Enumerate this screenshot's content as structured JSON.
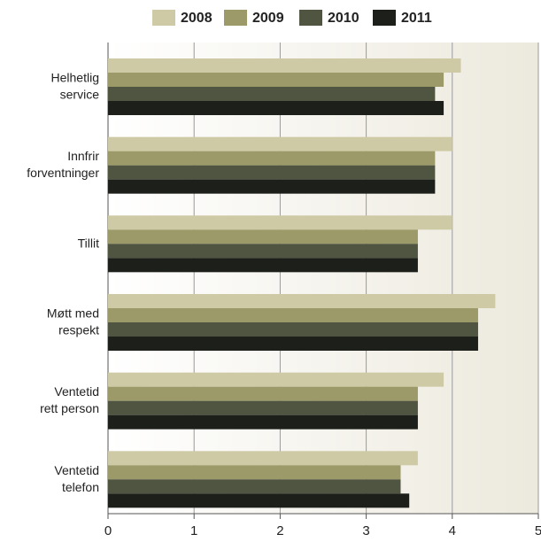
{
  "chart_data": {
    "type": "bar",
    "orientation": "horizontal",
    "categories": [
      "Helhetlig\nservice",
      "Innfrir\nforventninger",
      "Tillit",
      "Møtt med\nrespekt",
      "Ventetid\nrett person",
      "Ventetid\ntelefon"
    ],
    "series": [
      {
        "name": "2008",
        "color": "#cfcaa6",
        "values": [
          4.1,
          4.0,
          4.0,
          4.5,
          3.9,
          3.6
        ]
      },
      {
        "name": "2009",
        "color": "#9c9a68",
        "values": [
          3.9,
          3.8,
          3.6,
          4.3,
          3.6,
          3.4
        ]
      },
      {
        "name": "2010",
        "color": "#4f5540",
        "values": [
          3.8,
          3.8,
          3.6,
          4.3,
          3.6,
          3.4
        ]
      },
      {
        "name": "2011",
        "color": "#1c1f1a",
        "values": [
          3.9,
          3.8,
          3.6,
          4.3,
          3.6,
          3.5
        ]
      }
    ],
    "xlim": [
      0,
      5
    ],
    "xticks": [
      0,
      1,
      2,
      3,
      4,
      5
    ],
    "grid": true,
    "legend": "top"
  }
}
